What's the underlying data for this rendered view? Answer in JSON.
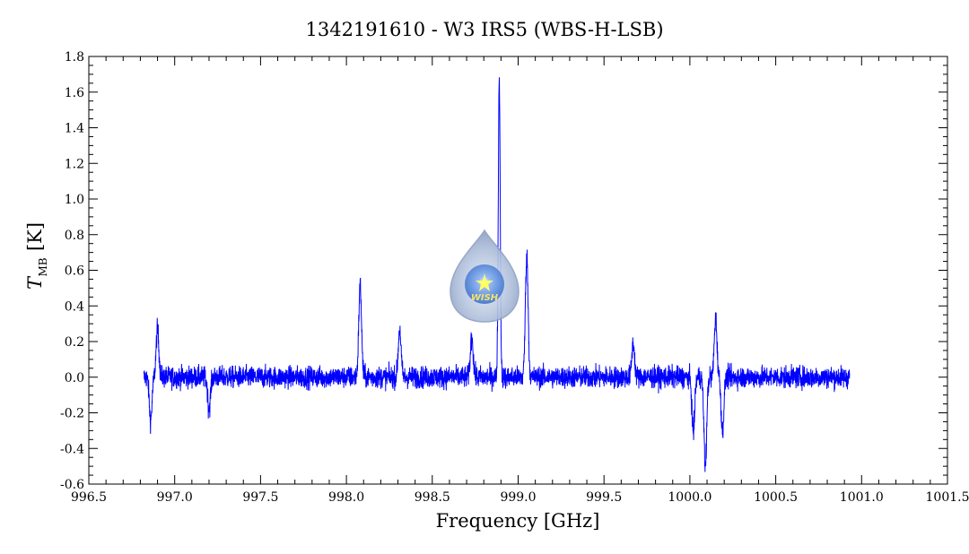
{
  "chart_data": {
    "type": "line",
    "title": "1342191610 - W3 IRS5 (WBS-H-LSB)",
    "xlabel": "Frequency [GHz]",
    "ylabel_main": "T",
    "ylabel_sub": "MB",
    "ylabel_unit": "[K]",
    "xlim": [
      996.5,
      1001.5
    ],
    "ylim": [
      -0.6,
      1.8
    ],
    "x_ticks": [
      "996.5",
      "997.0",
      "997.5",
      "998.0",
      "998.5",
      "999.0",
      "999.5",
      "1000.0",
      "1000.5",
      "1001.0",
      "1001.5"
    ],
    "y_ticks": [
      "-0.6",
      "-0.4",
      "-0.2",
      "0.0",
      "0.2",
      "0.4",
      "0.6",
      "0.8",
      "1.0",
      "1.2",
      "1.4",
      "1.6",
      "1.8"
    ],
    "grid": false,
    "series": [
      {
        "color": "#0000ff",
        "x_range": [
          996.82,
          1000.93
        ],
        "noise_rms": 0.04,
        "features": [
          {
            "x": 996.86,
            "y": -0.24
          },
          {
            "x": 996.9,
            "y": 0.27
          },
          {
            "x": 997.2,
            "y": -0.18
          },
          {
            "x": 998.08,
            "y": 0.52
          },
          {
            "x": 998.31,
            "y": 0.27
          },
          {
            "x": 998.73,
            "y": 0.23
          },
          {
            "x": 998.89,
            "y": 1.69
          },
          {
            "x": 999.05,
            "y": 0.68
          },
          {
            "x": 999.67,
            "y": 0.19
          },
          {
            "x": 1000.02,
            "y": -0.31
          },
          {
            "x": 1000.09,
            "y": -0.5
          },
          {
            "x": 1000.15,
            "y": 0.33
          },
          {
            "x": 1000.19,
            "y": -0.3
          }
        ]
      }
    ]
  },
  "logo": {
    "text": "WISH",
    "colors": {
      "outer": "#9fb1cf",
      "inner": "#4b7fd6",
      "star": "#ffff66",
      "text": "#f3e36a"
    }
  }
}
